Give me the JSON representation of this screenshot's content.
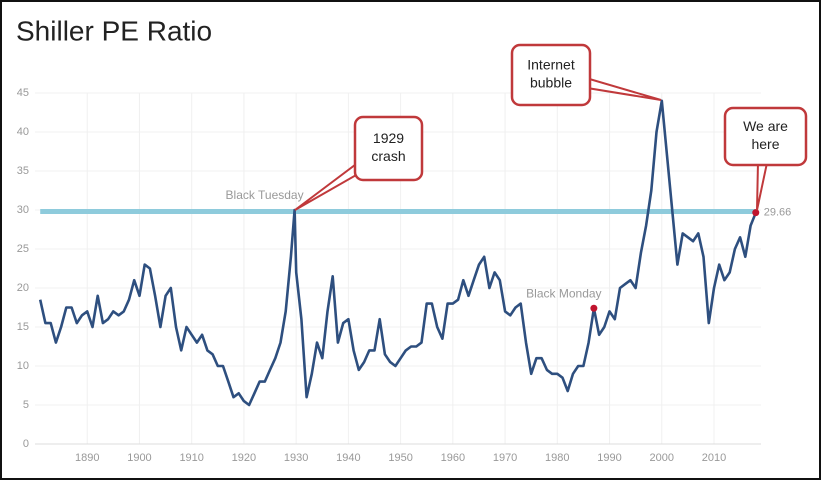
{
  "chart_data": {
    "type": "line",
    "title": "Shiller PE Ratio",
    "x": [
      1881,
      1882,
      1883,
      1884,
      1885,
      1886,
      1887,
      1888,
      1889,
      1890,
      1891,
      1892,
      1893,
      1894,
      1895,
      1896,
      1897,
      1898,
      1899,
      1900,
      1901,
      1902,
      1903,
      1904,
      1905,
      1906,
      1907,
      1908,
      1909,
      1910,
      1911,
      1912,
      1913,
      1914,
      1915,
      1916,
      1917,
      1918,
      1919,
      1920,
      1921,
      1922,
      1923,
      1924,
      1925,
      1926,
      1927,
      1928,
      1929,
      1929.7,
      1930,
      1931,
      1932,
      1933,
      1934,
      1935,
      1936,
      1937,
      1938,
      1939,
      1940,
      1941,
      1942,
      1943,
      1944,
      1945,
      1946,
      1947,
      1948,
      1949,
      1950,
      1951,
      1952,
      1953,
      1954,
      1955,
      1956,
      1957,
      1958,
      1959,
      1960,
      1961,
      1962,
      1963,
      1964,
      1965,
      1966,
      1967,
      1968,
      1969,
      1970,
      1971,
      1972,
      1973,
      1974,
      1975,
      1976,
      1977,
      1978,
      1979,
      1980,
      1981,
      1982,
      1983,
      1984,
      1985,
      1986,
      1987,
      1988,
      1989,
      1990,
      1991,
      1992,
      1993,
      1994,
      1995,
      1996,
      1997,
      1998,
      1999,
      2000,
      2001,
      2002,
      2003,
      2004,
      2005,
      2006,
      2007,
      2008,
      2009,
      2010,
      2011,
      2012,
      2013,
      2014,
      2015,
      2016,
      2017,
      2018
    ],
    "values": [
      18.5,
      15.5,
      15.5,
      13,
      15,
      17.5,
      17.5,
      15.5,
      16.5,
      17,
      15,
      19,
      15.5,
      16,
      17,
      16.5,
      17,
      18.5,
      21,
      19,
      23,
      22.5,
      19,
      15,
      19,
      20,
      15,
      12,
      15,
      14,
      13,
      14,
      12,
      11.5,
      10,
      10,
      8,
      6,
      6.5,
      5.5,
      5,
      6.5,
      8,
      8,
      9.5,
      11,
      13,
      17,
      24,
      30,
      22,
      16,
      6,
      9,
      13,
      11,
      17,
      21.5,
      13,
      15.5,
      16,
      12,
      9.5,
      10.5,
      12,
      12,
      16,
      11.5,
      10.5,
      10,
      11,
      12,
      12.5,
      12.5,
      13,
      18,
      18,
      15,
      13.5,
      18,
      18,
      18.5,
      21,
      19,
      21,
      23,
      24,
      20,
      22,
      21,
      17,
      16.5,
      17.5,
      18,
      13,
      9,
      11,
      11,
      9.5,
      9,
      9,
      8.5,
      6.8,
      9,
      10,
      10,
      13,
      17.4,
      14,
      15,
      17,
      16,
      20,
      20.5,
      21,
      20,
      24.5,
      28,
      32.5,
      40,
      44,
      37,
      30,
      23,
      27,
      26.5,
      26,
      27,
      24,
      15.5,
      20,
      23,
      21,
      22,
      25,
      26.5,
      24,
      28,
      29.66
    ],
    "color": "#2e4f7f",
    "xlim": [
      1880,
      2019
    ],
    "ylim": [
      0,
      45
    ],
    "xticks": [
      1890,
      1900,
      1910,
      1920,
      1930,
      1940,
      1950,
      1960,
      1970,
      1980,
      1990,
      2000,
      2010
    ],
    "yticks": [
      0,
      5,
      10,
      15,
      20,
      25,
      30,
      35,
      40,
      45
    ],
    "grid": true,
    "hlines": [
      {
        "y": 29.8,
        "color": "#8ecbdc"
      }
    ],
    "annotations": [
      {
        "text": "Black Tuesday",
        "x": 1929.7,
        "y": 30
      },
      {
        "text": "Black Monday",
        "x": 1987,
        "y": 17.4,
        "marker": "#c0142e"
      }
    ],
    "end_label": {
      "x": 2018,
      "y": 29.66,
      "marker": "#c0142e"
    },
    "callouts": [
      {
        "lines": [
          "1929",
          "crash"
        ]
      },
      {
        "lines": [
          "Internet",
          "bubble"
        ]
      },
      {
        "lines": [
          "We are",
          "here"
        ]
      }
    ]
  }
}
